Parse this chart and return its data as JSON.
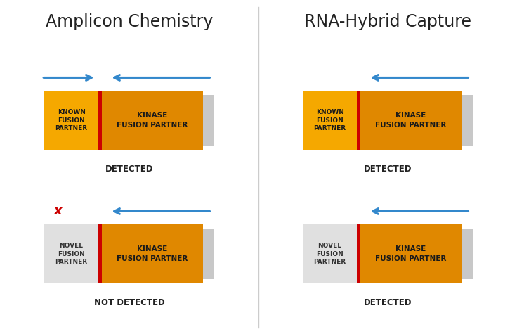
{
  "bg_color": "#ffffff",
  "divider_color": "#cccccc",
  "orange_bright": "#F5A800",
  "orange_dark": "#E08800",
  "gray_box": "#E0E0E0",
  "gray_ext": "#C8C8C8",
  "red_color": "#CC0000",
  "blue_arrow": "#3388CC",
  "text_dark": "#222222",
  "title_left": "Amplicon Chemistry",
  "title_right": "RNA-Hybrid Capture",
  "panels": [
    {
      "col": 0,
      "row": 0,
      "left_label": "KNOWN\nFUSION\nPARTNER",
      "right_label": "KINASE\nFUSION PARTNER",
      "left_orange": true,
      "arrow_left": true,
      "arrow_right": true,
      "status": "DETECTED",
      "x_mark": false
    },
    {
      "col": 1,
      "row": 0,
      "left_label": "KNOWN\nFUSION\nPARTNER",
      "right_label": "KINASE\nFUSION PARTNER",
      "left_orange": true,
      "arrow_left": false,
      "arrow_right": true,
      "status": "DETECTED",
      "x_mark": false
    },
    {
      "col": 0,
      "row": 1,
      "left_label": "NOVEL\nFUSION\nPARTNER",
      "right_label": "KINASE\nFUSION PARTNER",
      "left_orange": false,
      "arrow_left": false,
      "arrow_right": true,
      "status": "NOT DETECTED",
      "x_mark": true
    },
    {
      "col": 1,
      "row": 1,
      "left_label": "NOVEL\nFUSION\nPARTNER",
      "right_label": "KINASE\nFUSION PARTNER",
      "left_orange": false,
      "arrow_left": false,
      "arrow_right": true,
      "status": "DETECTED",
      "x_mark": false
    }
  ]
}
